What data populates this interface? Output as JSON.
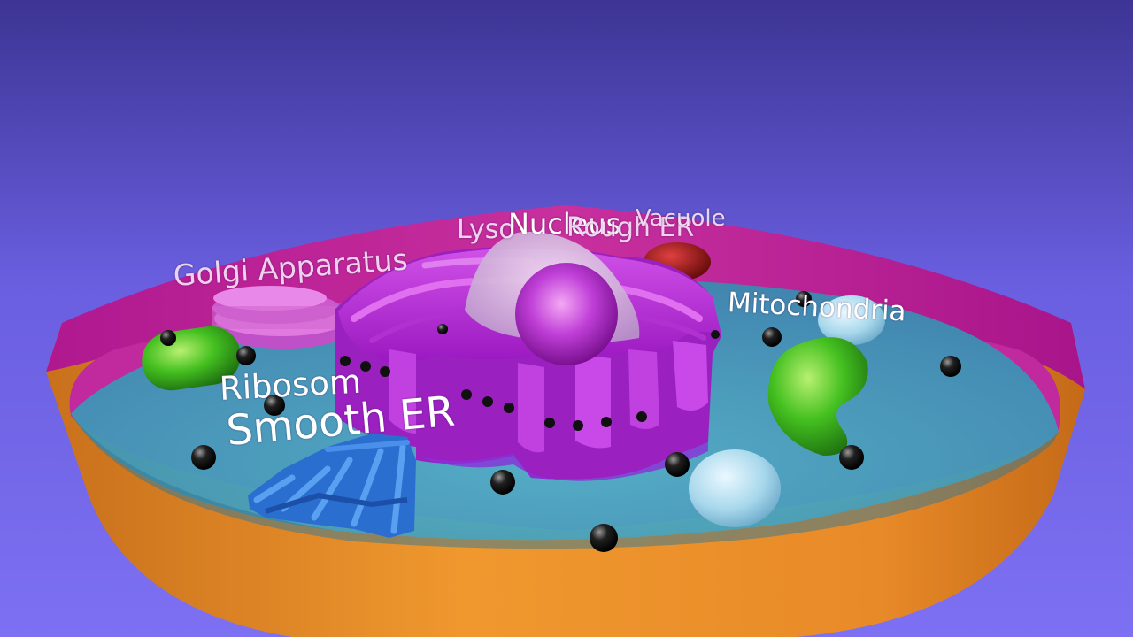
{
  "labels": {
    "golgi": "Golgi Apparatus",
    "lysosome": "Lyso",
    "nucleus": "Nucleus",
    "rough_er": "Rough ER",
    "vacuole": "Vacuole",
    "mitochondria": "Mitochondria",
    "ribosome": "Ribosom",
    "smooth_er": "Smooth ER"
  },
  "colors": {
    "background_top": "#4a3fa8",
    "background_bottom": "#7a6cf0",
    "cell_wall_outer": "#e8922e",
    "cell_wall_inner": "#c0209a",
    "cytoplasm": "#3aa0b8",
    "rough_er": "#b020d0",
    "nucleus": "#c060e0",
    "nuclear_envelope": "#e0b8e8",
    "golgi": "#d060d0",
    "mitochondria": "#40c020",
    "smooth_er": "#2a78d8",
    "vacuole": "#9cd0e8",
    "lysosome": "#a01010",
    "ribosome": "#101010"
  }
}
